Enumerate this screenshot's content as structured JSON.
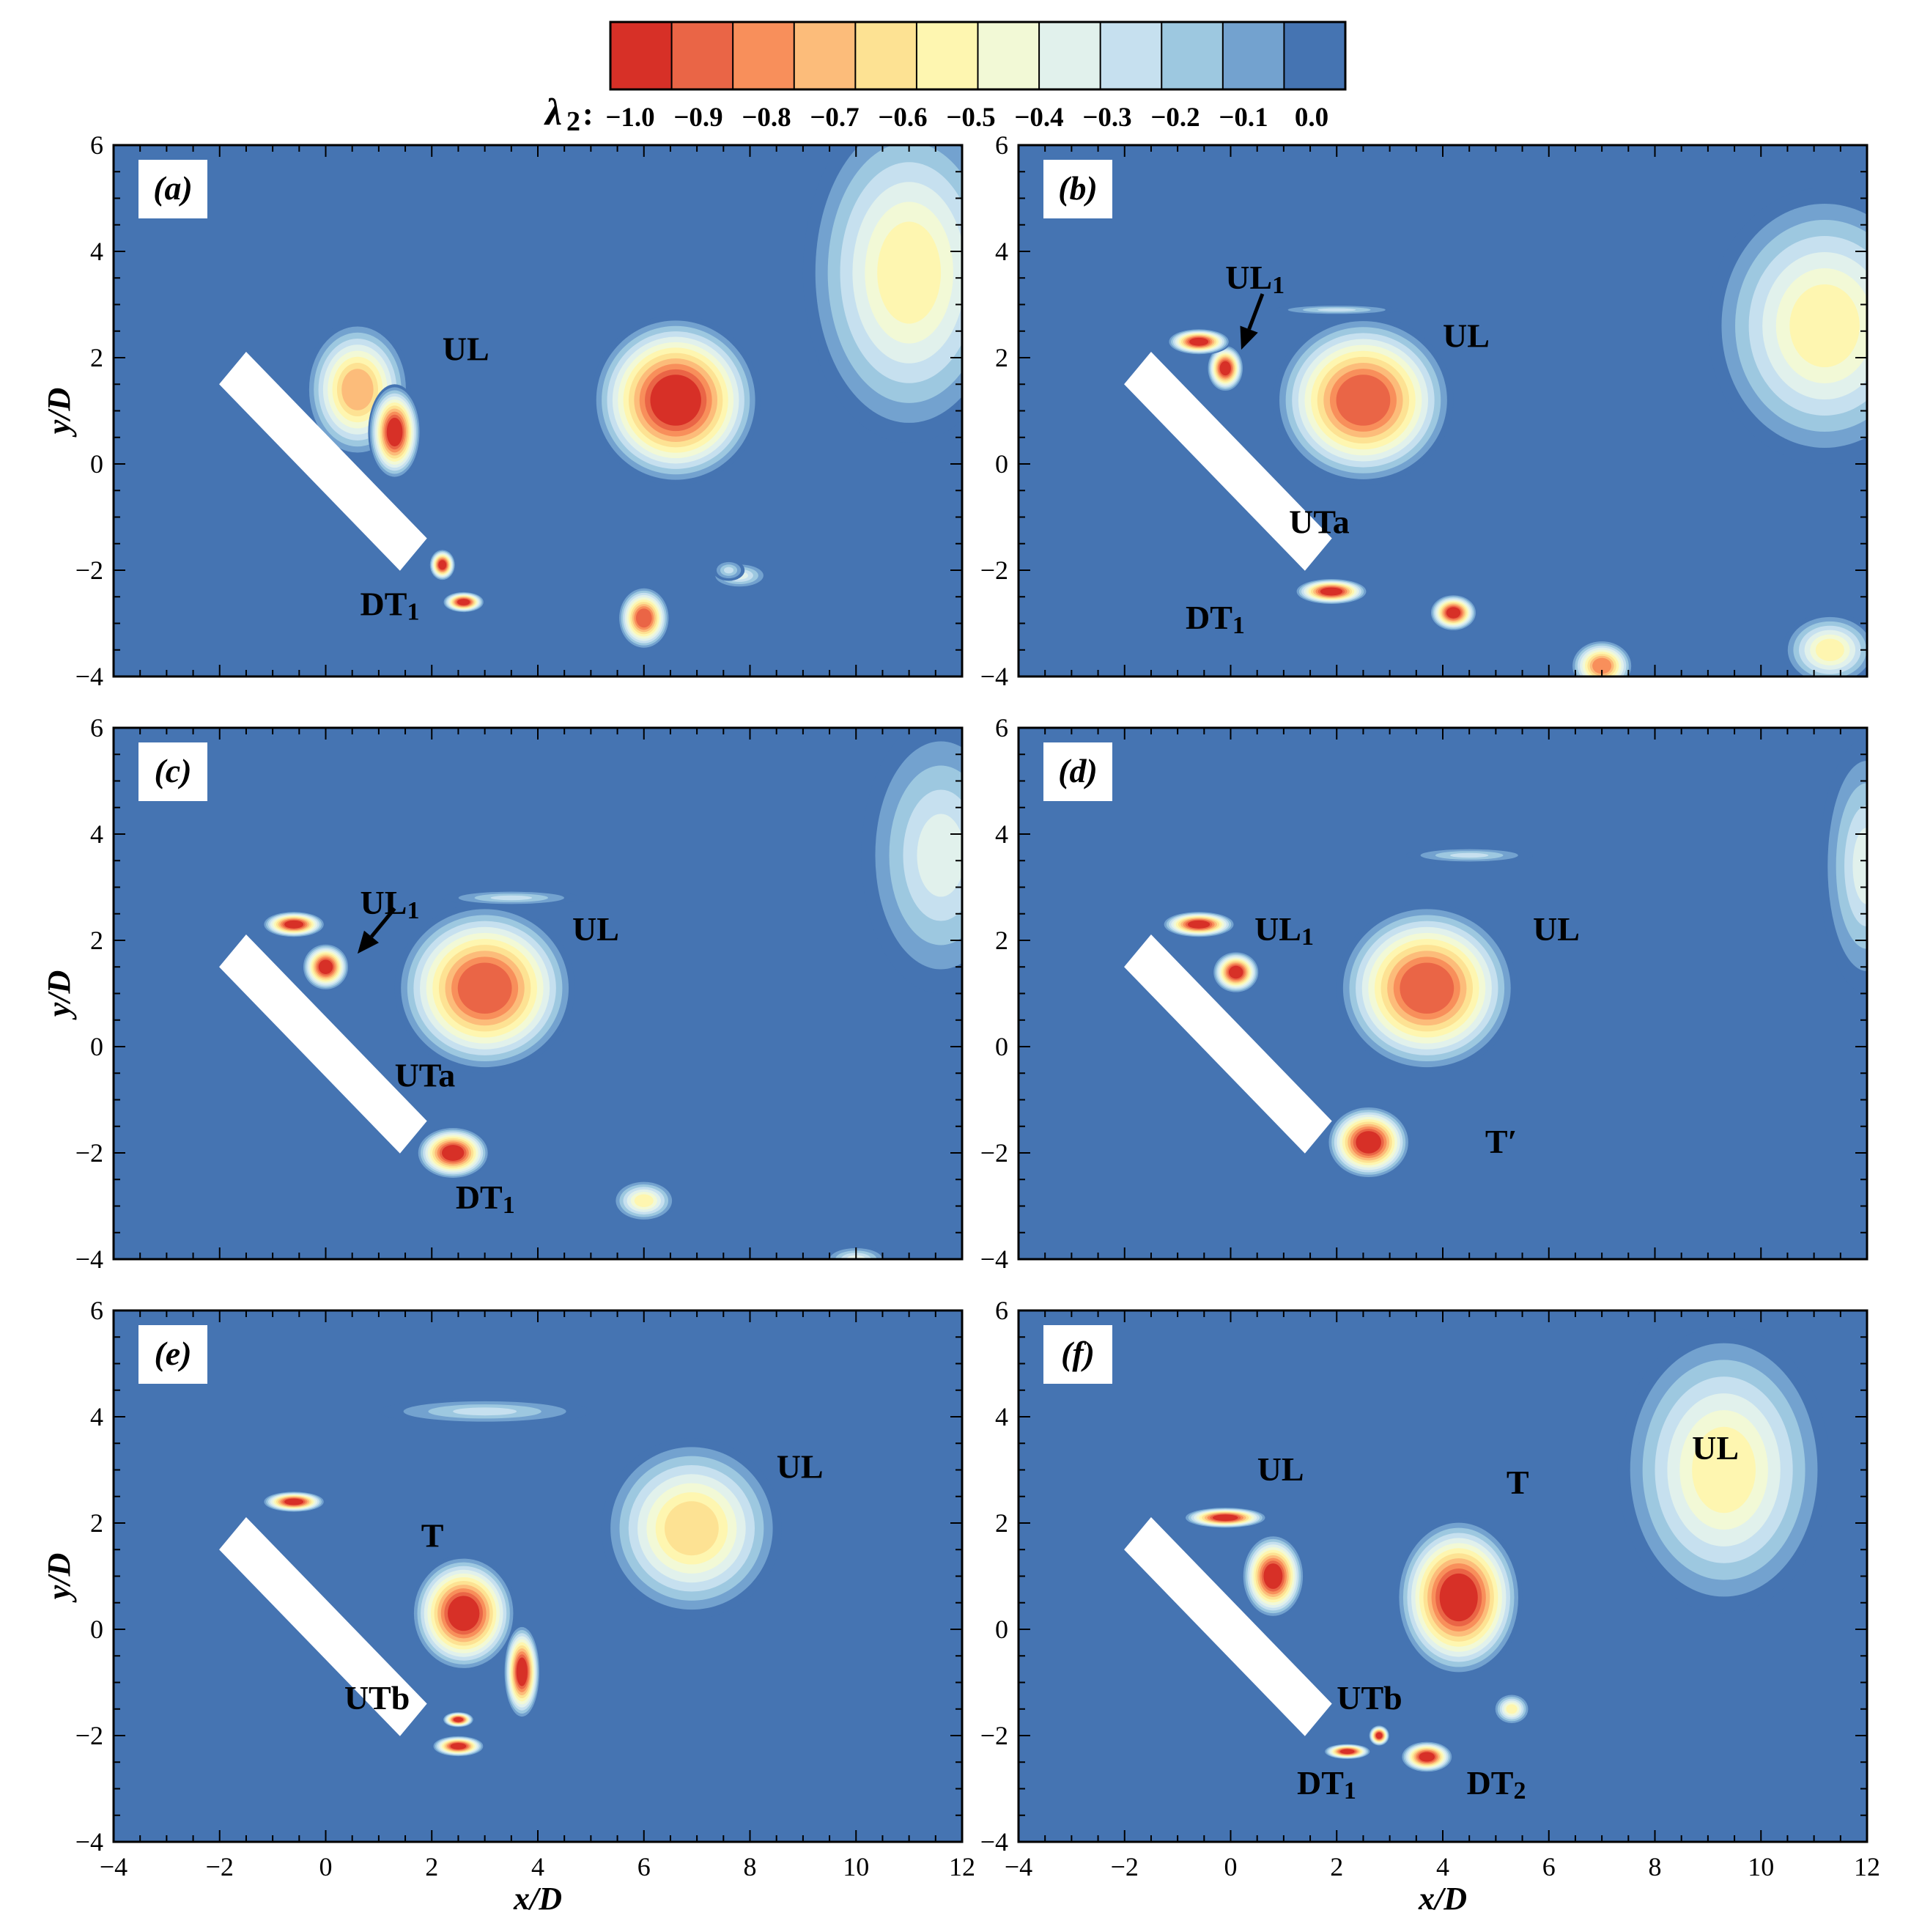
{
  "colorbar": {
    "symbol": "λ",
    "subscript": "2",
    "colon": ":",
    "levels": [
      -1.0,
      -0.9,
      -0.8,
      -0.7,
      -0.6,
      -0.5,
      -0.4,
      -0.3,
      -0.2,
      -0.1,
      0.0
    ],
    "tick_labels": [
      "−1.0",
      "−0.9",
      "−0.8",
      "−0.7",
      "−0.6",
      "−0.5",
      "−0.4",
      "−0.3",
      "−0.2",
      "−0.1",
      "0.0"
    ],
    "colors": [
      "#d73027",
      "#ea6546",
      "#f88f5b",
      "#fcbc7a",
      "#fde293",
      "#fef6b0",
      "#f2f9d6",
      "#e1f1ec",
      "#c6e0ef",
      "#9dc8e0",
      "#73a2cf",
      "#4574b2"
    ]
  },
  "chart_data": {
    "type": "heatmap",
    "description_free": true,
    "xlim": [
      -4,
      12
    ],
    "ylim": [
      -4,
      6
    ],
    "xticks": [
      -4,
      -2,
      0,
      2,
      4,
      6,
      8,
      10,
      12
    ],
    "xtick_labels": [
      "−4",
      "−2",
      "0",
      "2",
      "4",
      "6",
      "8",
      "10",
      "12"
    ],
    "yticks": [
      -4,
      -2,
      0,
      2,
      4,
      6
    ],
    "ytick_labels": [
      "−4",
      "−2",
      "0",
      "2",
      "4",
      "6"
    ],
    "xlabel": "x/D",
    "ylabel": "y/D",
    "background_color": "#4574b2",
    "plate": {
      "corners": [
        [
          -2.0,
          1.5
        ],
        [
          -1.5,
          2.1
        ],
        [
          1.9,
          -1.4
        ],
        [
          1.4,
          -2.0
        ]
      ]
    },
    "panels": [
      {
        "label": "(a)",
        "blobs": [
          {
            "x": 6.6,
            "y": 1.2,
            "rx": 1.6,
            "ry": 1.6,
            "core": 0
          },
          {
            "x": 11.0,
            "y": 3.6,
            "rx": 2.0,
            "ry": 3.2,
            "core": 5
          },
          {
            "x": 6.0,
            "y": -2.9,
            "rx": 0.5,
            "ry": 0.6,
            "core": 1
          },
          {
            "x": 7.8,
            "y": -2.1,
            "rx": 0.55,
            "ry": 0.25,
            "core": 7
          },
          {
            "x": 7.6,
            "y": -2.0,
            "rx": 0.3,
            "ry": 0.2,
            "core": 8
          },
          {
            "x": 0.6,
            "y": 1.4,
            "rx": 1.0,
            "ry": 1.3,
            "core": 3
          },
          {
            "x": 1.3,
            "y": 0.6,
            "rx": 0.5,
            "ry": 0.9,
            "core": 0
          },
          {
            "x": 2.6,
            "y": -2.6,
            "rx": 0.4,
            "ry": 0.2,
            "core": 0
          },
          {
            "x": 2.2,
            "y": -1.9,
            "rx": 0.25,
            "ry": 0.3,
            "core": 0
          }
        ],
        "annotations": [
          {
            "text": "UL",
            "x": 2.2,
            "y": 1.95
          },
          {
            "text": "DT",
            "sub": "1",
            "x": 0.65,
            "y": -2.85
          }
        ]
      },
      {
        "label": "(b)",
        "blobs": [
          {
            "x": 2.5,
            "y": 1.2,
            "rx": 1.7,
            "ry": 1.6,
            "core": 1
          },
          {
            "x": 11.2,
            "y": 2.6,
            "rx": 2.2,
            "ry": 2.6,
            "core": 5
          },
          {
            "x": -0.1,
            "y": 1.8,
            "rx": 0.35,
            "ry": 0.45,
            "core": 0
          },
          {
            "x": -0.6,
            "y": 2.3,
            "rx": 0.6,
            "ry": 0.25,
            "core": 0
          },
          {
            "x": 1.9,
            "y": -2.4,
            "rx": 0.7,
            "ry": 0.25,
            "core": 0
          },
          {
            "x": 4.2,
            "y": -2.8,
            "rx": 0.45,
            "ry": 0.35,
            "core": 0
          },
          {
            "x": 7.0,
            "y": -3.8,
            "rx": 0.6,
            "ry": 0.5,
            "core": 2
          },
          {
            "x": 11.3,
            "y": -3.5,
            "rx": 0.9,
            "ry": 0.7,
            "core": 5
          },
          {
            "x": 2.0,
            "y": 2.9,
            "rx": 1.2,
            "ry": 0.1,
            "core": 8
          }
        ],
        "annotations": [
          {
            "text": "UL",
            "x": 4.0,
            "y": 2.2
          },
          {
            "text": "UL",
            "sub": "1",
            "x": -0.1,
            "y": 3.3
          },
          {
            "text": "UTa",
            "x": 1.1,
            "y": -1.3
          },
          {
            "text": "DT",
            "sub": "1",
            "x": -0.85,
            "y": -3.1
          }
        ],
        "arrows": [
          {
            "from": [
              0.6,
              3.2
            ],
            "to": [
              0.2,
              2.15
            ]
          }
        ]
      },
      {
        "label": "(c)",
        "blobs": [
          {
            "x": 3.0,
            "y": 1.1,
            "rx": 1.7,
            "ry": 1.6,
            "core": 1
          },
          {
            "x": 11.6,
            "y": 3.6,
            "rx": 1.5,
            "ry": 2.6,
            "core": 7
          },
          {
            "x": 0.0,
            "y": 1.5,
            "rx": 0.45,
            "ry": 0.45,
            "core": 0
          },
          {
            "x": -0.6,
            "y": 2.3,
            "rx": 0.6,
            "ry": 0.25,
            "core": 0
          },
          {
            "x": 2.4,
            "y": -2.0,
            "rx": 0.7,
            "ry": 0.5,
            "core": 0
          },
          {
            "x": 6.0,
            "y": -2.9,
            "rx": 0.6,
            "ry": 0.4,
            "core": 5
          },
          {
            "x": 10.0,
            "y": -4.0,
            "rx": 0.6,
            "ry": 0.25,
            "core": 7
          },
          {
            "x": 3.5,
            "y": 2.8,
            "rx": 1.3,
            "ry": 0.15,
            "core": 8
          }
        ],
        "annotations": [
          {
            "text": "UL",
            "x": 4.65,
            "y": 2.0
          },
          {
            "text": "UL",
            "sub": "1",
            "x": 0.65,
            "y": 2.5
          },
          {
            "text": "UTa",
            "x": 1.3,
            "y": -0.75
          },
          {
            "text": "DT",
            "sub": "1",
            "x": 2.45,
            "y": -3.05
          }
        ],
        "arrows": [
          {
            "from": [
              1.3,
              2.6
            ],
            "to": [
              0.6,
              1.75
            ]
          }
        ]
      },
      {
        "label": "(d)",
        "blobs": [
          {
            "x": 3.7,
            "y": 1.1,
            "rx": 1.7,
            "ry": 1.6,
            "core": 1
          },
          {
            "x": 12.0,
            "y": 3.4,
            "rx": 0.9,
            "ry": 2.4,
            "core": 7
          },
          {
            "x": 0.1,
            "y": 1.4,
            "rx": 0.45,
            "ry": 0.4,
            "core": 0
          },
          {
            "x": -0.6,
            "y": 2.3,
            "rx": 0.7,
            "ry": 0.25,
            "core": 0
          },
          {
            "x": 2.6,
            "y": -1.8,
            "rx": 0.8,
            "ry": 0.7,
            "core": 0
          },
          {
            "x": 4.5,
            "y": 3.6,
            "rx": 1.2,
            "ry": 0.15,
            "core": 8
          }
        ],
        "annotations": [
          {
            "text": "UL",
            "x": 5.7,
            "y": 2.0
          },
          {
            "text": "UL",
            "sub": "1",
            "x": 0.45,
            "y": 2.0
          },
          {
            "text": "T′",
            "x": 4.8,
            "y": -2.0
          }
        ]
      },
      {
        "label": "(e)",
        "blobs": [
          {
            "x": 6.9,
            "y": 1.9,
            "rx": 1.7,
            "ry": 1.7,
            "core": 4
          },
          {
            "x": 2.6,
            "y": 0.3,
            "rx": 1.0,
            "ry": 1.1,
            "core": 0
          },
          {
            "x": 3.7,
            "y": -0.8,
            "rx": 0.35,
            "ry": 0.9,
            "core": 0
          },
          {
            "x": 2.5,
            "y": -2.2,
            "rx": 0.5,
            "ry": 0.2,
            "core": 0
          },
          {
            "x": 2.5,
            "y": -1.7,
            "rx": 0.3,
            "ry": 0.15,
            "core": 0
          },
          {
            "x": -0.6,
            "y": 2.4,
            "rx": 0.6,
            "ry": 0.2,
            "core": 0
          },
          {
            "x": 3.0,
            "y": 4.1,
            "rx": 2.0,
            "ry": 0.25,
            "core": 8
          }
        ],
        "annotations": [
          {
            "text": "UL",
            "x": 8.5,
            "y": 2.85
          },
          {
            "text": "T",
            "x": 1.8,
            "y": 1.55
          },
          {
            "text": "UTb",
            "x": 0.35,
            "y": -1.5
          }
        ]
      },
      {
        "label": "(f)",
        "blobs": [
          {
            "x": 4.3,
            "y": 0.6,
            "rx": 1.2,
            "ry": 1.5,
            "core": 0
          },
          {
            "x": 9.3,
            "y": 3.0,
            "rx": 2.0,
            "ry": 2.7,
            "core": 5
          },
          {
            "x": 0.8,
            "y": 1.0,
            "rx": 0.6,
            "ry": 0.8,
            "core": 0
          },
          {
            "x": -0.1,
            "y": 2.1,
            "rx": 0.8,
            "ry": 0.2,
            "core": 0
          },
          {
            "x": 2.2,
            "y": -2.3,
            "rx": 0.45,
            "ry": 0.15,
            "core": 0
          },
          {
            "x": 2.8,
            "y": -2.0,
            "rx": 0.2,
            "ry": 0.2,
            "core": 0
          },
          {
            "x": 3.7,
            "y": -2.4,
            "rx": 0.5,
            "ry": 0.3,
            "core": 0
          },
          {
            "x": 5.3,
            "y": -1.5,
            "rx": 0.35,
            "ry": 0.3,
            "core": 5
          }
        ],
        "annotations": [
          {
            "text": "UL",
            "x": 0.5,
            "y": 2.8
          },
          {
            "text": "T",
            "x": 5.2,
            "y": 2.55
          },
          {
            "text": "UL",
            "x": 8.7,
            "y": 3.2
          },
          {
            "text": "UTb",
            "x": 2.0,
            "y": -1.5
          },
          {
            "text": "DT",
            "sub": "1",
            "x": 1.25,
            "y": -3.1
          },
          {
            "text": "DT",
            "sub": "2",
            "x": 4.45,
            "y": -3.1
          }
        ]
      }
    ]
  }
}
